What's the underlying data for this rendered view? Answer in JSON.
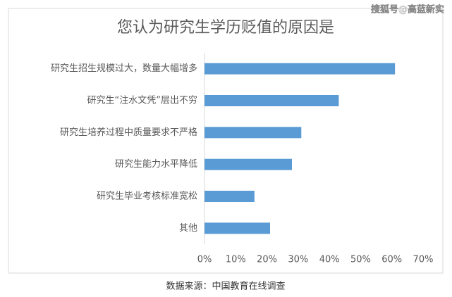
{
  "chart_data": {
    "type": "bar",
    "orientation": "horizontal",
    "title": "您认为研究生学历贬值的原因是",
    "categories": [
      "研究生招生规模过大，数量大幅增多",
      "研究生“注水文凭”层出不穷",
      "研究生培养过程中质量要求不严格",
      "研究生能力水平降低",
      "研究生毕业考核标准宽松",
      "其他"
    ],
    "values": [
      61,
      43,
      31,
      28,
      16,
      21
    ],
    "color": "#5b9bd5",
    "xlim": [
      0,
      70
    ],
    "xticks": [
      {
        "value": 0,
        "label": "0%"
      },
      {
        "value": 10,
        "label": "10%"
      },
      {
        "value": 20,
        "label": "20%"
      },
      {
        "value": 30,
        "label": "30%"
      },
      {
        "value": 40,
        "label": "40%"
      },
      {
        "value": 50,
        "label": "50%"
      },
      {
        "value": 60,
        "label": "60%"
      },
      {
        "value": 70,
        "label": "70%"
      }
    ],
    "grid": false,
    "source": "数据来源：中国教育在线调查",
    "watermark": "搜狐号@高蓝新实"
  }
}
